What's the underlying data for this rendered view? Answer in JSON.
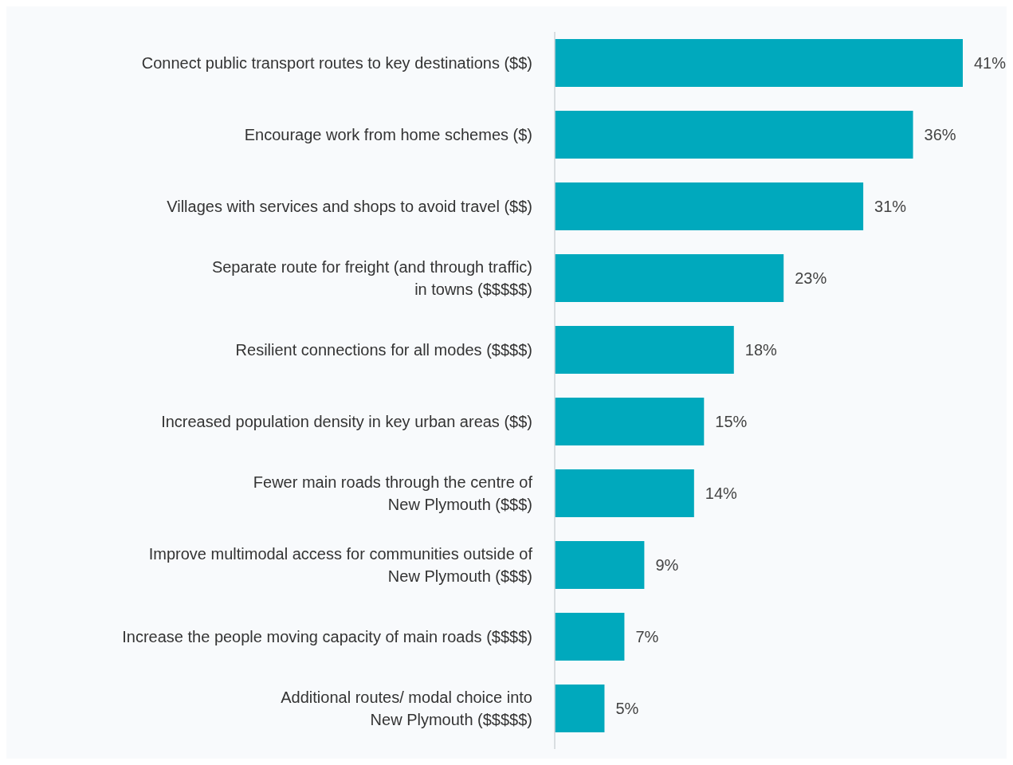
{
  "chart_data": {
    "type": "bar",
    "orientation": "horizontal",
    "color": "#00a9bd",
    "categories": [
      "Connect public transport routes to key destinations ($$)",
      "Encourage work from home schemes ($)",
      "Villages with services and shops to avoid travel ($$)",
      "Separate route for freight (and through traffic)\nin towns ($$$$$)",
      "Resilient connections for all modes ($$$$)",
      "Increased population density in key urban areas ($$)",
      "Fewer main roads through the centre of\nNew Plymouth ($$$)",
      "Improve multimodal access for communities outside of\nNew Plymouth ($$$)",
      "Increase the people moving capacity of main roads ($$$$)",
      "Additional routes/ modal choice into\nNew Plymouth ($$$$$)"
    ],
    "values": [
      41,
      36,
      31,
      23,
      18,
      15,
      14,
      9,
      7,
      5
    ],
    "value_labels": [
      "41%",
      "36%",
      "31%",
      "23%",
      "18%",
      "15%",
      "14%",
      "9%",
      "7%",
      "5%"
    ]
  }
}
